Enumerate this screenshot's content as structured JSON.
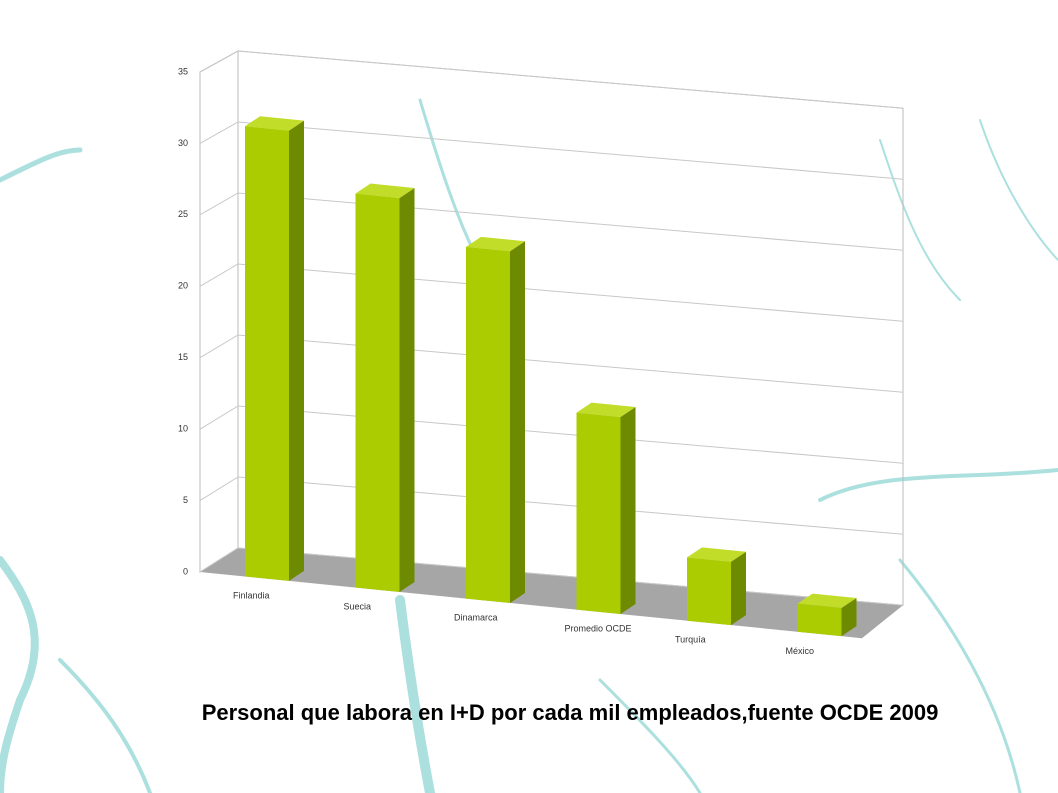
{
  "chart_data": {
    "type": "bar",
    "title": "Personal que labora en I+D por cada mil empleados,fuente OCDE 2009",
    "categories": [
      "Finlandia",
      "Suecia",
      "Dinamarca",
      "Promedio OCDE",
      "Turquía",
      "México"
    ],
    "values": [
      32,
      28,
      25,
      14,
      4.5,
      2
    ],
    "color": "#aacc00",
    "ylim": [
      0,
      35
    ],
    "yticks": [
      0,
      5,
      10,
      15,
      20,
      25,
      30,
      35
    ],
    "grid": true
  }
}
